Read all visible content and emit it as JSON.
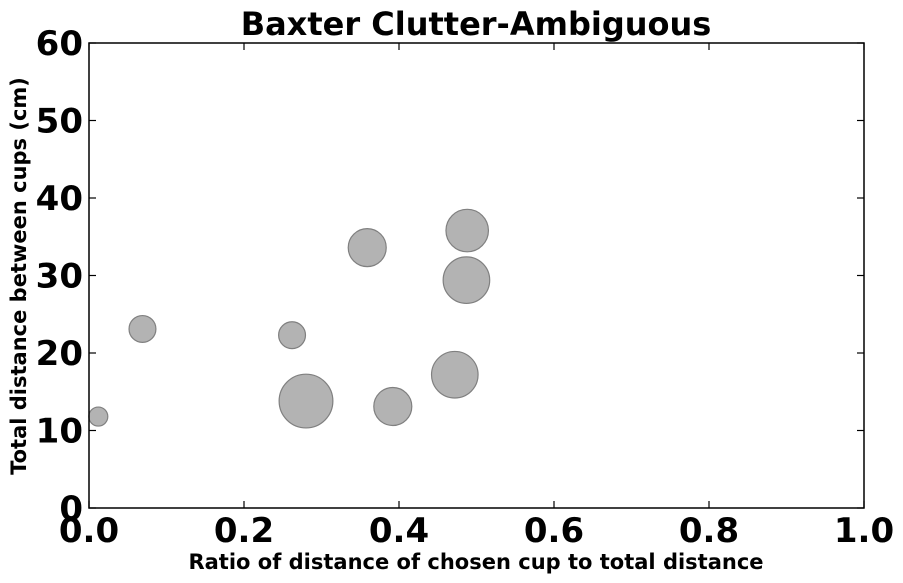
{
  "chart_data": {
    "type": "scatter",
    "title": "Baxter Clutter-Ambiguous",
    "xlabel": "Ratio of distance of chosen cup to total distance",
    "ylabel": "Total distance between cups (cm)",
    "xlim": [
      0.0,
      1.0
    ],
    "ylim": [
      0,
      60
    ],
    "xticks": [
      "0.0",
      "0.2",
      "0.4",
      "0.6",
      "0.8",
      "1.0"
    ],
    "yticks": [
      "0",
      "10",
      "20",
      "30",
      "40",
      "50",
      "60"
    ],
    "grid": false,
    "marker_color": "#a6a6a6",
    "marker_edge_color": "#808080",
    "points": [
      {
        "x": 0.012,
        "y": 11.8,
        "size": 1
      },
      {
        "x": 0.069,
        "y": 23.1,
        "size": 2
      },
      {
        "x": 0.262,
        "y": 22.3,
        "size": 2
      },
      {
        "x": 0.28,
        "y": 13.8,
        "size": 8
      },
      {
        "x": 0.359,
        "y": 33.6,
        "size": 4
      },
      {
        "x": 0.392,
        "y": 13.1,
        "size": 4
      },
      {
        "x": 0.472,
        "y": 17.2,
        "size": 6
      },
      {
        "x": 0.488,
        "y": 35.8,
        "size": 5
      },
      {
        "x": 0.487,
        "y": 29.4,
        "size": 6
      }
    ]
  }
}
